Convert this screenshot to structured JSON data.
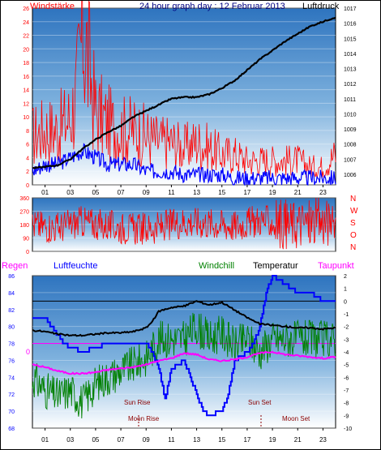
{
  "chart_data": [
    {
      "type": "line",
      "title": "24 hour graph day : 12 Februar 2013",
      "left_label": "Windstärke",
      "right_label": "Luftdruck",
      "xticks": [
        "01",
        "03",
        "05",
        "07",
        "09",
        "11",
        "13",
        "15",
        "17",
        "19",
        "21",
        "23"
      ],
      "y_left_ticks": [
        "0",
        "2",
        "4",
        "6",
        "8",
        "10",
        "12",
        "14",
        "16",
        "18",
        "20",
        "22",
        "24",
        "26"
      ],
      "y_right_ticks": [
        "1006",
        "1007",
        "1008",
        "1009",
        "1010",
        "1011",
        "1012",
        "1013",
        "1014",
        "1015",
        "1016",
        "1017"
      ],
      "ylim_left": [
        0,
        26
      ],
      "ylim_right": [
        1005.3,
        1017
      ],
      "colors": {
        "gust": "#ff0000",
        "wind": "#0000ff",
        "pressure": "#000000"
      },
      "series": [
        {
          "key": "gust",
          "hours": [
            0,
            1,
            2,
            3,
            3.5,
            4,
            5,
            6,
            7,
            8,
            9,
            10,
            11,
            12,
            13,
            14,
            15,
            16,
            17,
            18,
            19,
            20,
            21,
            22,
            23,
            24
          ],
          "values": [
            8,
            9,
            9,
            11,
            15,
            26,
            12,
            10,
            9,
            9,
            8,
            7,
            7,
            6,
            7,
            6,
            5,
            5,
            4,
            4,
            4,
            4,
            4,
            3,
            3,
            5
          ]
        },
        {
          "key": "wind",
          "hours": [
            0,
            1,
            2,
            3,
            4,
            5,
            6,
            7,
            8,
            9,
            10,
            11,
            12,
            13,
            14,
            15,
            16,
            17,
            18,
            19,
            20,
            21,
            22,
            23,
            24
          ],
          "values": [
            2,
            3,
            3,
            4,
            5,
            4,
            3,
            3,
            3,
            2,
            2,
            2,
            1.5,
            1.5,
            1.5,
            1.5,
            1,
            1,
            1,
            1,
            1,
            1,
            1,
            1,
            1
          ]
        },
        {
          "key": "pressure",
          "hours": [
            0,
            1,
            2,
            3,
            4,
            5,
            6,
            7,
            8,
            9,
            10,
            11,
            12,
            13,
            14,
            15,
            16,
            17,
            18,
            19,
            20,
            21,
            22,
            23,
            24
          ],
          "values": [
            1006.4,
            1006.5,
            1006.6,
            1007.0,
            1007.7,
            1008.3,
            1008.8,
            1009.2,
            1009.8,
            1010.2,
            1010.6,
            1011.0,
            1011.1,
            1011.1,
            1011.3,
            1011.7,
            1012.2,
            1012.9,
            1013.6,
            1014.2,
            1014.8,
            1015.3,
            1015.8,
            1016.1,
            1016.4
          ]
        }
      ]
    },
    {
      "type": "line",
      "title": "",
      "y_left_ticks": [
        "0",
        "90",
        "180",
        "270",
        "360"
      ],
      "right_label_letters": [
        "N",
        "W",
        "S",
        "O",
        "N"
      ],
      "ylim": [
        0,
        360
      ],
      "color": "#ff0000",
      "hours": [
        0,
        2,
        4,
        6,
        8,
        10,
        12,
        14,
        16,
        18,
        20,
        22,
        24
      ],
      "values": [
        180,
        160,
        200,
        170,
        150,
        160,
        200,
        190,
        170,
        210,
        180,
        190,
        200
      ]
    },
    {
      "type": "line",
      "title": "",
      "legend": [
        {
          "key": "rain",
          "label": "Regen",
          "color": "#ff00ff"
        },
        {
          "key": "humidity",
          "label": "Luftfeuchte",
          "color": "#0000ff"
        },
        {
          "key": "windchill",
          "label": "Windchill",
          "color": "#008000"
        },
        {
          "key": "temperature",
          "label": "Temperatur",
          "color": "#000000"
        },
        {
          "key": "dewpoint",
          "label": "Taupunkt",
          "color": "#ff00ff"
        }
      ],
      "xticks": [
        "01",
        "03",
        "05",
        "07",
        "09",
        "11",
        "13",
        "15",
        "17",
        "19",
        "21",
        "23"
      ],
      "y_left_ticks": [
        "68",
        "70",
        "72",
        "74",
        "76",
        "78",
        "80",
        "82",
        "84",
        "86"
      ],
      "y_right_ticks": [
        "2",
        "1",
        "0",
        "-1",
        "-2",
        "-3",
        "-4",
        "-5",
        "-6",
        "-7",
        "-8",
        "-9",
        "-10"
      ],
      "ylim_left": [
        68,
        86
      ],
      "ylim_right": [
        -10,
        2
      ],
      "rain_value": "0",
      "annotations": {
        "sun_rise": "Sun Rise",
        "sun_set": "Sun Set",
        "moon_rise": "Moon Rise",
        "moon_set": "Moon Set"
      },
      "series": [
        {
          "key": "humidity",
          "hours": [
            0,
            1,
            1.5,
            2,
            2.5,
            3,
            4,
            5,
            6,
            7,
            8,
            9,
            9.5,
            10,
            10.5,
            11,
            12,
            13,
            13.5,
            14,
            15,
            15.5,
            16,
            17,
            17.5,
            18,
            18.5,
            19,
            20,
            21,
            22,
            23,
            24
          ],
          "values": [
            81,
            81,
            80,
            79,
            78,
            77.5,
            77,
            77.5,
            78,
            78,
            78,
            78,
            77,
            75,
            71.5,
            75,
            76,
            72,
            70,
            69.5,
            70,
            72,
            76,
            77,
            78,
            80,
            84,
            86,
            85,
            84,
            84,
            83,
            83
          ]
        },
        {
          "key": "temperature",
          "hours": [
            0,
            1,
            2,
            3,
            4,
            5,
            6,
            7,
            8,
            9,
            9.5,
            10,
            11,
            12,
            13,
            14,
            15,
            16,
            17,
            18,
            19,
            20,
            21,
            22,
            23,
            24
          ],
          "values": [
            -2.3,
            -2.4,
            -2.6,
            -2.7,
            -2.7,
            -2.6,
            -2.5,
            -2.5,
            -2.4,
            -2.1,
            -1.6,
            -0.8,
            -0.5,
            -0.4,
            0.0,
            -0.3,
            -0.1,
            -0.7,
            -1.3,
            -1.8,
            -1.9,
            -2.0,
            -2.1,
            -2.1,
            -2.2,
            -2.1
          ]
        },
        {
          "key": "windchill",
          "hours": [
            0,
            1,
            2,
            3,
            4,
            5,
            6,
            7,
            8,
            9,
            10,
            11,
            12,
            13,
            14,
            15,
            16,
            17,
            18,
            19,
            20,
            21,
            22,
            23,
            24
          ],
          "values": [
            -6,
            -7,
            -7.5,
            -7,
            -8,
            -6.5,
            -6,
            -5.5,
            -5,
            -4.5,
            -3,
            -3,
            -3,
            -2,
            -3,
            -2.5,
            -3.5,
            -3,
            -4,
            -3,
            -3,
            -3,
            -3,
            -3,
            -3
          ]
        },
        {
          "key": "dewpoint",
          "hours": [
            0,
            1,
            2,
            3,
            4,
            5,
            6,
            7,
            8,
            9,
            10,
            11,
            12,
            13,
            14,
            15,
            16,
            17,
            18,
            19,
            20,
            21,
            22,
            23,
            24
          ],
          "values": [
            -5.0,
            -5.2,
            -5.5,
            -5.7,
            -5.7,
            -5.6,
            -5.4,
            -5.3,
            -5.2,
            -5.0,
            -4.7,
            -4.5,
            -4.1,
            -4.2,
            -4.6,
            -4.7,
            -4.6,
            -4.4,
            -4.1,
            -4.0,
            -4.2,
            -4.3,
            -4.4,
            -4.5,
            -4.4
          ]
        }
      ]
    }
  ]
}
